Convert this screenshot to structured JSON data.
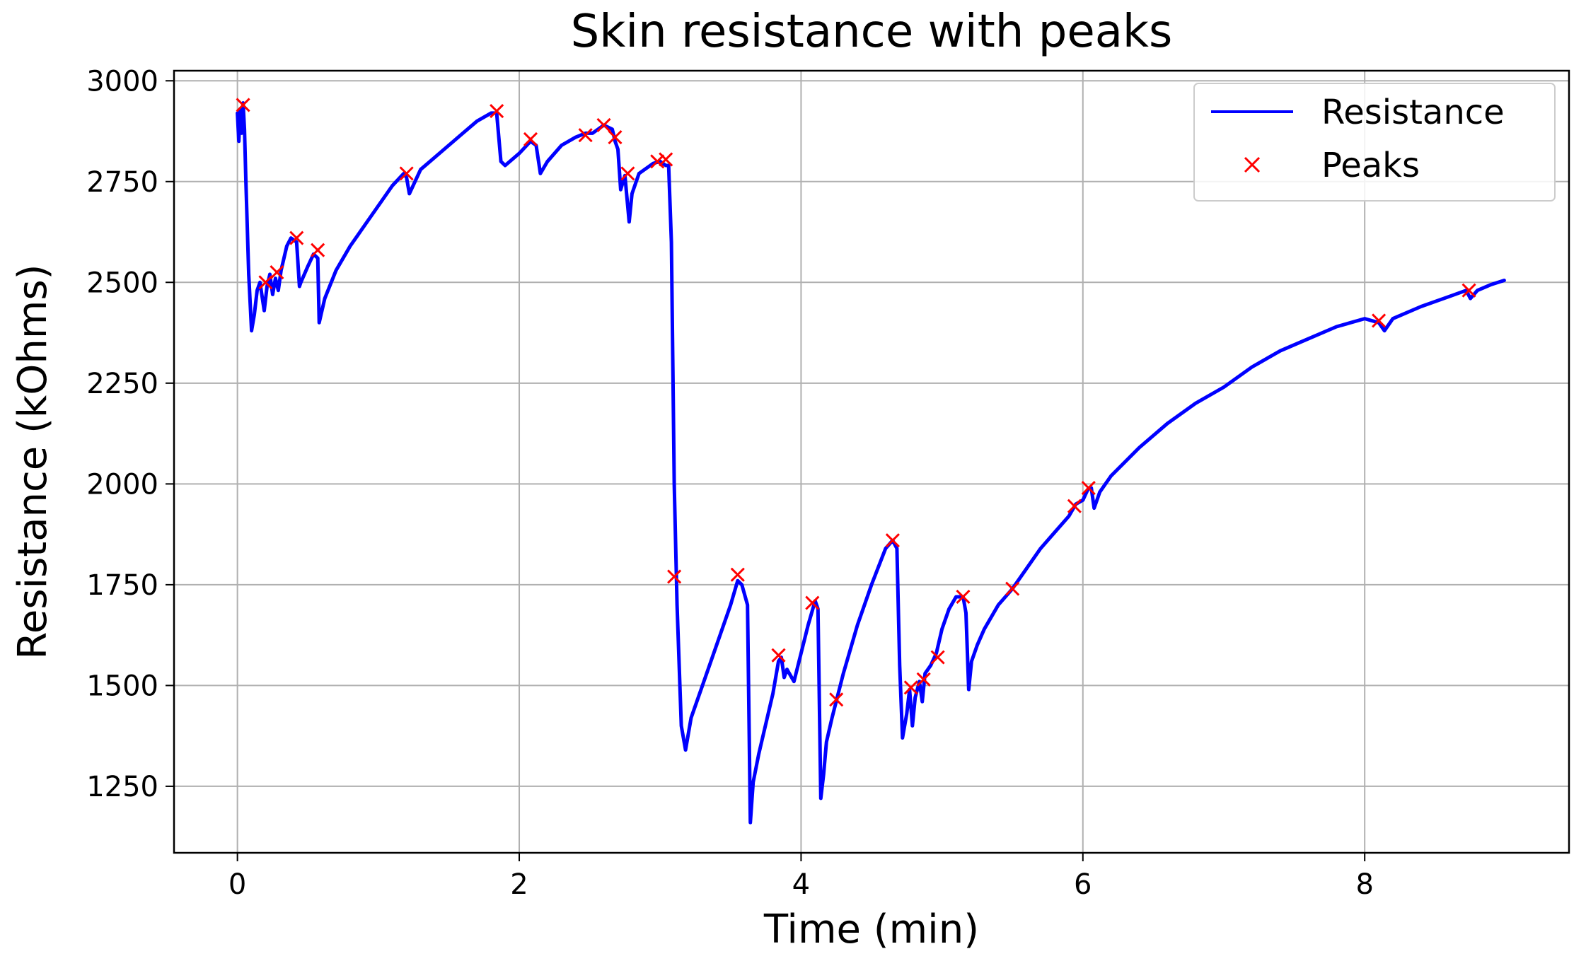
{
  "chart_data": {
    "type": "line",
    "title": "Skin resistance with peaks",
    "xlabel": "Time (min)",
    "ylabel": "Resistance (kOhms)",
    "xlim": [
      -0.45,
      9.45
    ],
    "ylim": [
      1085,
      3025
    ],
    "xticks": [
      0,
      2,
      4,
      6,
      8
    ],
    "yticks": [
      1250,
      1500,
      1750,
      2000,
      2250,
      2500,
      2750,
      3000
    ],
    "grid": true,
    "legend_position": "top-right",
    "series": [
      {
        "name": "Resistance",
        "kind": "line",
        "color": "#0000ff",
        "x": [
          0.0,
          0.01,
          0.02,
          0.03,
          0.04,
          0.05,
          0.06,
          0.08,
          0.1,
          0.12,
          0.14,
          0.16,
          0.19,
          0.21,
          0.23,
          0.25,
          0.27,
          0.29,
          0.31,
          0.33,
          0.35,
          0.38,
          0.42,
          0.44,
          0.45,
          0.5,
          0.54,
          0.57,
          0.58,
          0.62,
          0.7,
          0.8,
          0.9,
          1.0,
          1.1,
          1.18,
          1.2,
          1.22,
          1.3,
          1.4,
          1.5,
          1.6,
          1.7,
          1.8,
          1.84,
          1.87,
          1.9,
          2.0,
          2.08,
          2.12,
          2.15,
          2.2,
          2.3,
          2.4,
          2.47,
          2.52,
          2.6,
          2.66,
          2.68,
          2.7,
          2.72,
          2.75,
          2.78,
          2.8,
          2.85,
          2.95,
          3.0,
          3.04,
          3.06,
          3.08,
          3.1,
          3.12,
          3.15,
          3.18,
          3.22,
          3.3,
          3.4,
          3.5,
          3.55,
          3.58,
          3.62,
          3.64,
          3.66,
          3.7,
          3.8,
          3.84,
          3.86,
          3.88,
          3.9,
          3.95,
          4.0,
          4.05,
          4.1,
          4.12,
          4.14,
          4.16,
          4.18,
          4.22,
          4.3,
          4.4,
          4.5,
          4.6,
          4.65,
          4.68,
          4.7,
          4.72,
          4.75,
          4.77,
          4.79,
          4.81,
          4.84,
          4.86,
          4.88,
          4.92,
          4.96,
          5.0,
          5.05,
          5.1,
          5.15,
          5.17,
          5.19,
          5.21,
          5.25,
          5.3,
          5.4,
          5.5,
          5.6,
          5.7,
          5.8,
          5.9,
          5.95,
          6.0,
          6.04,
          6.06,
          6.08,
          6.12,
          6.2,
          6.4,
          6.6,
          6.8,
          7.0,
          7.2,
          7.4,
          7.6,
          7.8,
          8.0,
          8.1,
          8.14,
          8.2,
          8.4,
          8.6,
          8.72,
          8.75,
          8.8,
          8.9,
          8.99
        ],
        "y": [
          2920,
          2850,
          2930,
          2870,
          2945,
          2880,
          2750,
          2520,
          2380,
          2420,
          2480,
          2500,
          2430,
          2490,
          2520,
          2470,
          2510,
          2480,
          2530,
          2560,
          2590,
          2610,
          2600,
          2490,
          2500,
          2540,
          2570,
          2560,
          2400,
          2460,
          2530,
          2590,
          2640,
          2690,
          2740,
          2770,
          2760,
          2720,
          2780,
          2810,
          2840,
          2870,
          2900,
          2920,
          2920,
          2800,
          2790,
          2820,
          2850,
          2840,
          2770,
          2800,
          2840,
          2860,
          2870,
          2870,
          2890,
          2880,
          2850,
          2830,
          2730,
          2765,
          2650,
          2720,
          2770,
          2795,
          2800,
          2790,
          2790,
          2600,
          2000,
          1700,
          1400,
          1340,
          1420,
          1500,
          1600,
          1700,
          1760,
          1750,
          1700,
          1160,
          1260,
          1330,
          1480,
          1560,
          1570,
          1520,
          1540,
          1510,
          1580,
          1650,
          1710,
          1690,
          1220,
          1280,
          1360,
          1420,
          1530,
          1650,
          1750,
          1840,
          1860,
          1840,
          1550,
          1370,
          1430,
          1490,
          1400,
          1470,
          1510,
          1460,
          1530,
          1550,
          1580,
          1640,
          1690,
          1720,
          1720,
          1680,
          1490,
          1560,
          1600,
          1640,
          1700,
          1740,
          1790,
          1840,
          1880,
          1920,
          1950,
          1960,
          1990,
          1990,
          1940,
          1980,
          2020,
          2090,
          2150,
          2200,
          2240,
          2290,
          2330,
          2360,
          2390,
          2410,
          2400,
          2380,
          2410,
          2440,
          2465,
          2480,
          2460,
          2480,
          2495,
          2505
        ]
      },
      {
        "name": "Peaks",
        "kind": "scatter",
        "marker": "x",
        "color": "#ff0000",
        "x": [
          0.04,
          0.2,
          0.28,
          0.42,
          0.57,
          1.2,
          1.84,
          2.08,
          2.47,
          2.6,
          2.68,
          2.77,
          2.98,
          3.04,
          3.1,
          3.55,
          3.84,
          4.08,
          4.25,
          4.65,
          4.78,
          4.87,
          4.97,
          5.15,
          5.5,
          5.94,
          6.04,
          8.1,
          8.74
        ],
        "y": [
          2940,
          2500,
          2525,
          2610,
          2580,
          2770,
          2925,
          2855,
          2865,
          2890,
          2860,
          2770,
          2800,
          2805,
          1770,
          1775,
          1575,
          1705,
          1465,
          1860,
          1495,
          1515,
          1570,
          1720,
          1740,
          1945,
          1990,
          2405,
          2480
        ]
      }
    ]
  }
}
